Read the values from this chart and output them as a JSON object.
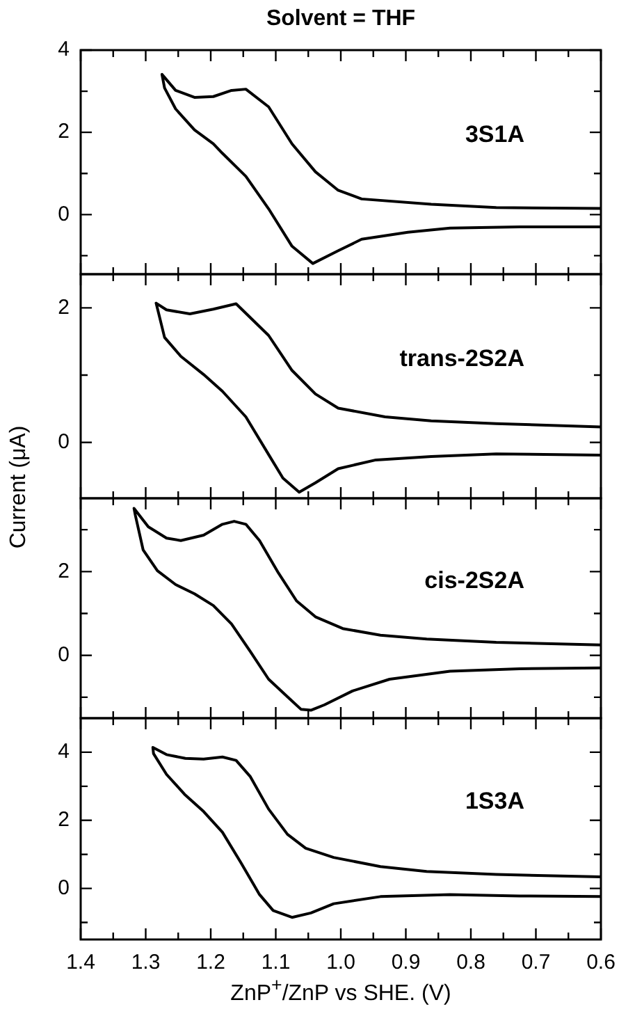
{
  "chart_data": [
    {
      "type": "line",
      "title": "Solvent = THF",
      "annotations": [
        "3S1A"
      ],
      "marker": "none",
      "tick_labels": "y",
      "xlim": [
        1.4,
        0.6
      ],
      "xticks": [
        1.4,
        {
          "value": 1.35,
          "label": null
        },
        1.3,
        {
          "value": 1.25,
          "label": null
        },
        1.2,
        {
          "value": 1.15,
          "label": null
        },
        1.1,
        {
          "value": 1.05,
          "label": null
        },
        1,
        {
          "value": 0.95,
          "label": null
        },
        0.9,
        {
          "value": 0.85,
          "label": null
        },
        0.8,
        {
          "value": 0.75,
          "label": null
        },
        0.7,
        {
          "value": 0.65,
          "label": null
        },
        0.6
      ],
      "ylim": [
        -1.45,
        4
      ],
      "yticks": [
        {
          "value": -1,
          "label": null
        },
        0,
        {
          "value": 1,
          "label": null
        },
        2,
        {
          "value": 3,
          "label": null
        },
        4
      ],
      "series": [
        {
          "color": "#000000",
          "x": [
            0.6,
            0.725,
            0.832,
            0.897,
            0.968,
            1.004,
            1.043,
            1.075,
            1.111,
            1.146,
            1.182,
            1.196,
            1.225,
            1.254,
            1.271,
            1.275,
            1.254,
            1.225,
            1.196,
            1.168,
            1.146,
            1.111,
            1.075,
            1.039,
            1.004,
            0.968,
            0.861,
            0.761,
            0.6
          ],
          "values": [
            -0.3,
            -0.3,
            -0.33,
            -0.43,
            -0.6,
            -0.88,
            -1.19,
            -0.77,
            0.14,
            0.93,
            1.49,
            1.72,
            2.06,
            2.57,
            3.08,
            3.41,
            3.02,
            2.85,
            2.87,
            3.02,
            3.05,
            2.62,
            1.72,
            1.04,
            0.59,
            0.38,
            0.25,
            0.17,
            0.15
          ]
        }
      ]
    },
    {
      "type": "line",
      "ylabel": "Current (μA)",
      "annotations": [
        "trans-2S2A"
      ],
      "marker": "none",
      "tick_labels": "y",
      "xlim": [
        1.4,
        0.6
      ],
      "xticks": [
        1.4,
        {
          "value": 1.35,
          "label": null
        },
        1.3,
        {
          "value": 1.25,
          "label": null
        },
        1.2,
        {
          "value": 1.15,
          "label": null
        },
        1.1,
        {
          "value": 1.05,
          "label": null
        },
        1,
        {
          "value": 0.95,
          "label": null
        },
        0.9,
        {
          "value": 0.85,
          "label": null
        },
        0.8,
        {
          "value": 0.75,
          "label": null
        },
        0.7,
        {
          "value": 0.65,
          "label": null
        },
        0.6
      ],
      "ylim": [
        -0.83,
        2.5
      ],
      "yticks": [
        0,
        {
          "value": 1,
          "label": null
        },
        2
      ],
      "series": [
        {
          "color": "#000000",
          "x": [
            0.6,
            0.761,
            0.861,
            0.946,
            1.004,
            1.039,
            1.064,
            1.089,
            1.111,
            1.146,
            1.182,
            1.211,
            1.246,
            1.271,
            1.284,
            1.268,
            1.232,
            1.196,
            1.161,
            1.111,
            1.075,
            1.039,
            1.004,
            0.932,
            0.861,
            0.761,
            0.6
          ],
          "values": [
            -0.19,
            -0.17,
            -0.21,
            -0.26,
            -0.39,
            -0.6,
            -0.74,
            -0.53,
            -0.18,
            0.38,
            0.76,
            1.01,
            1.28,
            1.56,
            2.07,
            1.97,
            1.91,
            1.98,
            2.06,
            1.59,
            1.07,
            0.72,
            0.51,
            0.38,
            0.32,
            0.28,
            0.23
          ]
        }
      ]
    },
    {
      "type": "line",
      "annotations": [
        "cis-2S2A"
      ],
      "marker": "none",
      "tick_labels": "y",
      "xlim": [
        1.4,
        0.6
      ],
      "xticks": [
        1.4,
        {
          "value": 1.35,
          "label": null
        },
        1.3,
        {
          "value": 1.25,
          "label": null
        },
        1.2,
        {
          "value": 1.15,
          "label": null
        },
        1.1,
        {
          "value": 1.05,
          "label": null
        },
        1,
        {
          "value": 0.95,
          "label": null
        },
        0.9,
        {
          "value": 0.85,
          "label": null
        },
        0.8,
        {
          "value": 0.75,
          "label": null
        },
        0.7,
        {
          "value": 0.65,
          "label": null
        },
        0.6
      ],
      "ylim": [
        -1.5,
        3.75
      ],
      "yticks": [
        {
          "value": -1,
          "label": null
        },
        0,
        {
          "value": 1,
          "label": null
        },
        2,
        {
          "value": 3,
          "label": null
        }
      ],
      "series": [
        {
          "color": "#000000",
          "x": [
            0.6,
            0.725,
            0.832,
            0.925,
            0.982,
            1.025,
            1.046,
            1.061,
            1.082,
            1.111,
            1.139,
            1.168,
            1.196,
            1.225,
            1.254,
            1.282,
            1.304,
            1.316,
            1.318,
            1.296,
            1.268,
            1.246,
            1.211,
            1.182,
            1.164,
            1.146,
            1.125,
            1.096,
            1.068,
            1.039,
            0.997,
            0.939,
            0.868,
            0.761,
            0.6
          ],
          "values": [
            -0.3,
            -0.32,
            -0.38,
            -0.57,
            -0.85,
            -1.18,
            -1.31,
            -1.29,
            -0.99,
            -0.57,
            0.09,
            0.75,
            1.19,
            1.47,
            1.69,
            2.02,
            2.52,
            3.35,
            3.51,
            3.07,
            2.8,
            2.74,
            2.87,
            3.13,
            3.2,
            3.13,
            2.74,
            1.97,
            1.3,
            0.92,
            0.64,
            0.48,
            0.39,
            0.31,
            0.25
          ]
        }
      ]
    },
    {
      "type": "line",
      "xlabel": "ZnP$^{+}$/ZnP vs SHE. (V)",
      "annotations": [
        "1S3A"
      ],
      "marker": "none",
      "xlim": [
        1.4,
        0.6
      ],
      "xticks": [
        {
          "value": 1.4,
          "label": "1.4"
        },
        {
          "value": 1.35,
          "label": null
        },
        {
          "value": 1.3,
          "label": "1.3"
        },
        {
          "value": 1.25,
          "label": null
        },
        {
          "value": 1.2,
          "label": "1.2"
        },
        {
          "value": 1.15,
          "label": null
        },
        {
          "value": 1.1,
          "label": "1.1"
        },
        {
          "value": 1.05,
          "label": null
        },
        {
          "value": 1.0,
          "label": "1.0"
        },
        {
          "value": 0.95,
          "label": null
        },
        {
          "value": 0.9,
          "label": "0.9"
        },
        {
          "value": 0.85,
          "label": null
        },
        {
          "value": 0.8,
          "label": "0.8"
        },
        {
          "value": 0.75,
          "label": null
        },
        {
          "value": 0.7,
          "label": "0.7"
        },
        {
          "value": 0.65,
          "label": null
        },
        {
          "value": 0.6,
          "label": "0.6"
        }
      ],
      "ylim": [
        -1.5,
        5
      ],
      "yticks": [
        {
          "value": -1,
          "label": null
        },
        0,
        {
          "value": 1,
          "label": null
        },
        2,
        {
          "value": 3,
          "label": null
        },
        4
      ],
      "series": [
        {
          "color": "#000000",
          "x": [
            0.6,
            0.725,
            0.832,
            0.939,
            1.011,
            1.046,
            1.075,
            1.104,
            1.125,
            1.154,
            1.182,
            1.211,
            1.239,
            1.268,
            1.288,
            1.289,
            1.268,
            1.239,
            1.211,
            1.182,
            1.161,
            1.139,
            1.111,
            1.082,
            1.054,
            1.011,
            0.939,
            0.868,
            0.761,
            0.6
          ],
          "values": [
            -0.24,
            -0.22,
            -0.18,
            -0.24,
            -0.45,
            -0.72,
            -0.85,
            -0.65,
            -0.18,
            0.77,
            1.65,
            2.26,
            2.74,
            3.35,
            3.96,
            4.14,
            3.93,
            3.82,
            3.8,
            3.86,
            3.76,
            3.28,
            2.33,
            1.59,
            1.18,
            0.91,
            0.64,
            0.5,
            0.41,
            0.34
          ]
        }
      ]
    }
  ]
}
